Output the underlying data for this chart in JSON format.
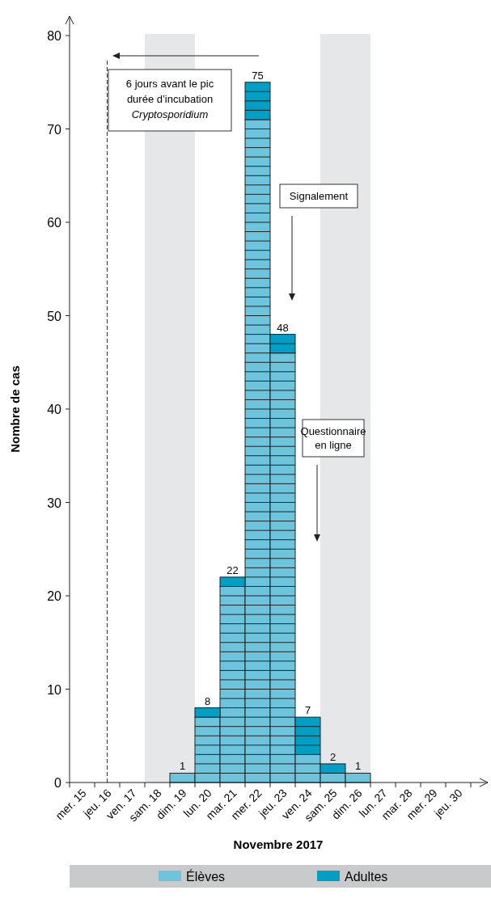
{
  "chart_data": {
    "type": "bar",
    "stacked": true,
    "xlabel": "Novembre 2017",
    "ylabel": "Nombre de cas",
    "categories": [
      "mer. 15",
      "jeu. 16",
      "ven. 17",
      "sam. 18",
      "dim. 19",
      "lun. 20",
      "mar. 21",
      "mer. 22",
      "jeu. 23",
      "ven. 24",
      "sam. 25",
      "dim. 26",
      "lun. 27",
      "mar. 28",
      "mer. 29",
      "jeu. 30"
    ],
    "series": [
      {
        "name": "Élèves",
        "color": "#6cc5dd",
        "values": [
          0,
          0,
          0,
          0,
          1,
          7,
          21,
          71,
          46,
          3,
          1,
          1,
          0,
          0,
          0,
          0
        ]
      },
      {
        "name": "Adultes",
        "color": "#00a0c6",
        "values": [
          0,
          0,
          0,
          0,
          0,
          1,
          1,
          4,
          2,
          4,
          1,
          0,
          0,
          0,
          0,
          0
        ]
      }
    ],
    "totals": [
      null,
      null,
      null,
      null,
      "1",
      "8",
      "22",
      "75",
      "48",
      "7",
      "2",
      "1",
      null,
      null,
      null,
      null
    ],
    "ylim": [
      0,
      80
    ],
    "yticks": [
      0,
      10,
      20,
      30,
      40,
      50,
      60,
      70,
      80
    ],
    "bands": [
      {
        "axis": "x",
        "from": "sam. 18",
        "to": "dim. 19",
        "color": "#e6e7e9"
      },
      {
        "axis": "x",
        "from": "sam. 25",
        "to": "dim. 26",
        "color": "#e6e7e9"
      }
    ],
    "ref_lines": [
      {
        "axis": "x",
        "value": "jeu. 16",
        "line_style": "dashed",
        "color": "#333333"
      }
    ],
    "annotations": [
      "6 jours avant le pic\ndurée d’incubation\nCryptosporidium",
      "Signalement",
      "Questionnaire\nen ligne"
    ],
    "legend": "bottom",
    "grid": false
  }
}
